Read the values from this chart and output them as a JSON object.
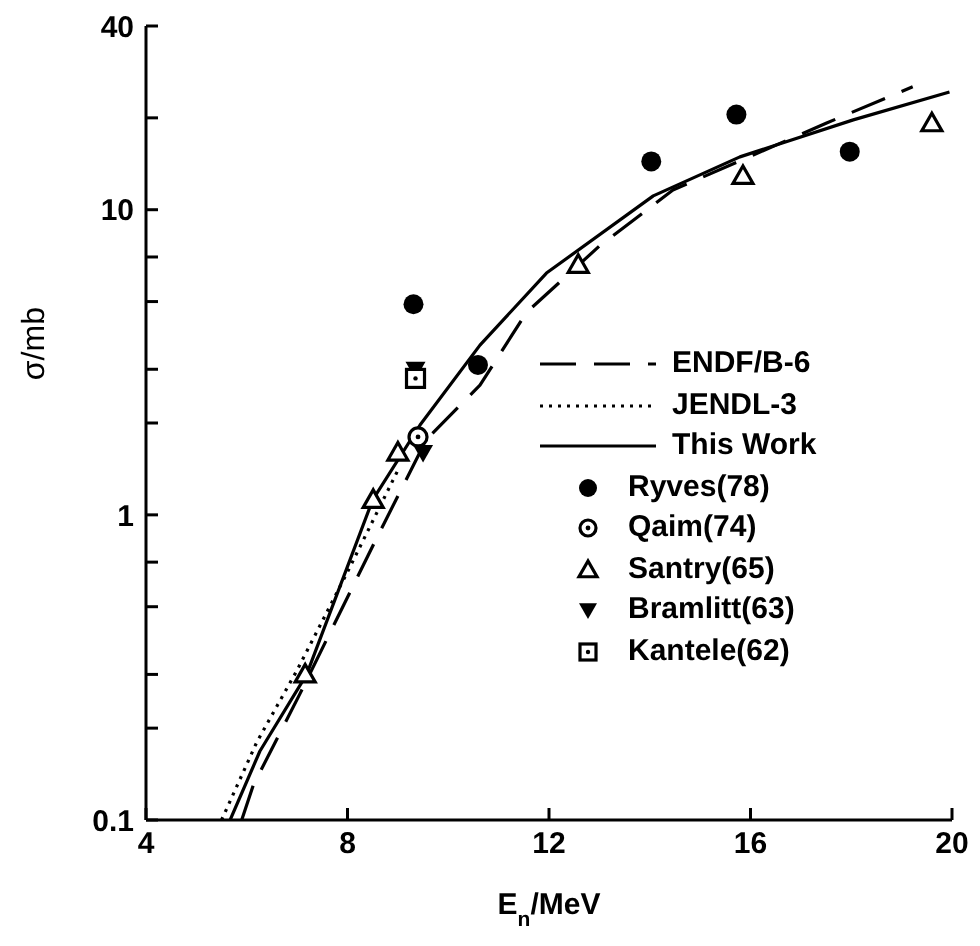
{
  "chart_data": {
    "type": "line",
    "xlabel": "E$_{n}$/MeV",
    "ylabel": "σ/mb",
    "xlim": [
      4,
      20
    ],
    "xticks": [
      4,
      8,
      12,
      16,
      20
    ],
    "ylim": [
      0.1,
      40
    ],
    "yticks": [
      0.1,
      {
        "value": 0.2,
        "label": null
      },
      {
        "value": 0.3,
        "label": null
      },
      {
        "value": 0.5,
        "label": null
      },
      {
        "value": 0.7,
        "label": null
      },
      1,
      {
        "value": 2,
        "label": null
      },
      {
        "value": 3,
        "label": null
      },
      {
        "value": 5,
        "label": null
      },
      {
        "value": 7,
        "label": null
      },
      10,
      {
        "value": 20,
        "label": null
      },
      40
    ],
    "log": "y",
    "grid": false,
    "legend": "bottom right",
    "series": [
      {
        "name": "ENDF/B-6",
        "type": "line",
        "color": "#000000",
        "line_style": "dashed",
        "marker": "none",
        "x": [
          5.9,
          6.13,
          7.06,
          8.58,
          9.57,
          10.63,
          11.55,
          13.0,
          14.46,
          17.5,
          19.22
        ],
        "values": [
          0.1,
          0.13,
          0.26,
          0.84,
          1.77,
          2.66,
          4.6,
          7.6,
          11.6,
          19.2,
          25.3
        ]
      },
      {
        "name": "JENDL-3",
        "type": "line",
        "color": "#000000",
        "line_style": "dotted",
        "marker": "none",
        "x": [
          5.5,
          6.2,
          7.0,
          8.0,
          9.0
        ],
        "values": [
          0.1,
          0.18,
          0.31,
          0.65,
          1.4
        ]
      },
      {
        "name": "This Work",
        "type": "line",
        "color": "#000000",
        "line_style": "solid",
        "marker": "none",
        "x": [
          5.67,
          6.26,
          7.19,
          8.5,
          9.44,
          10.63,
          11.95,
          14.07,
          15.79,
          18.04,
          19.95
        ],
        "values": [
          0.1,
          0.168,
          0.3,
          1.12,
          1.97,
          3.6,
          6.2,
          11.1,
          14.9,
          19.7,
          24.3
        ]
      },
      {
        "name": "Ryves(78)",
        "type": "scatter",
        "color": "#000000",
        "marker": "circle",
        "x": [
          9.31,
          10.59,
          14.03,
          15.72,
          17.97
        ],
        "values": [
          4.9,
          3.1,
          14.4,
          20.5,
          15.5
        ]
      },
      {
        "name": "Qaim(74)",
        "type": "scatter",
        "color": "#000000",
        "marker": "circle-open",
        "x": [
          9.4
        ],
        "values": [
          1.8
        ]
      },
      {
        "name": "Santry(65)",
        "type": "scatter",
        "color": "#000000",
        "marker": "triangle-open",
        "x": [
          7.16,
          8.51,
          9.0,
          12.58,
          15.85,
          19.6
        ],
        "values": [
          0.3,
          1.12,
          1.6,
          6.6,
          12.9,
          19.2
        ]
      },
      {
        "name": "Bramlitt(63)",
        "type": "scatter",
        "color": "#000000",
        "marker": "triangle-down",
        "x": [
          9.35,
          9.5
        ],
        "values": [
          3.0,
          1.6
        ]
      },
      {
        "name": "Kantele(62)",
        "type": "scatter",
        "color": "#000000",
        "marker": "square-open",
        "x": [
          9.35
        ],
        "values": [
          2.8
        ]
      }
    ]
  }
}
